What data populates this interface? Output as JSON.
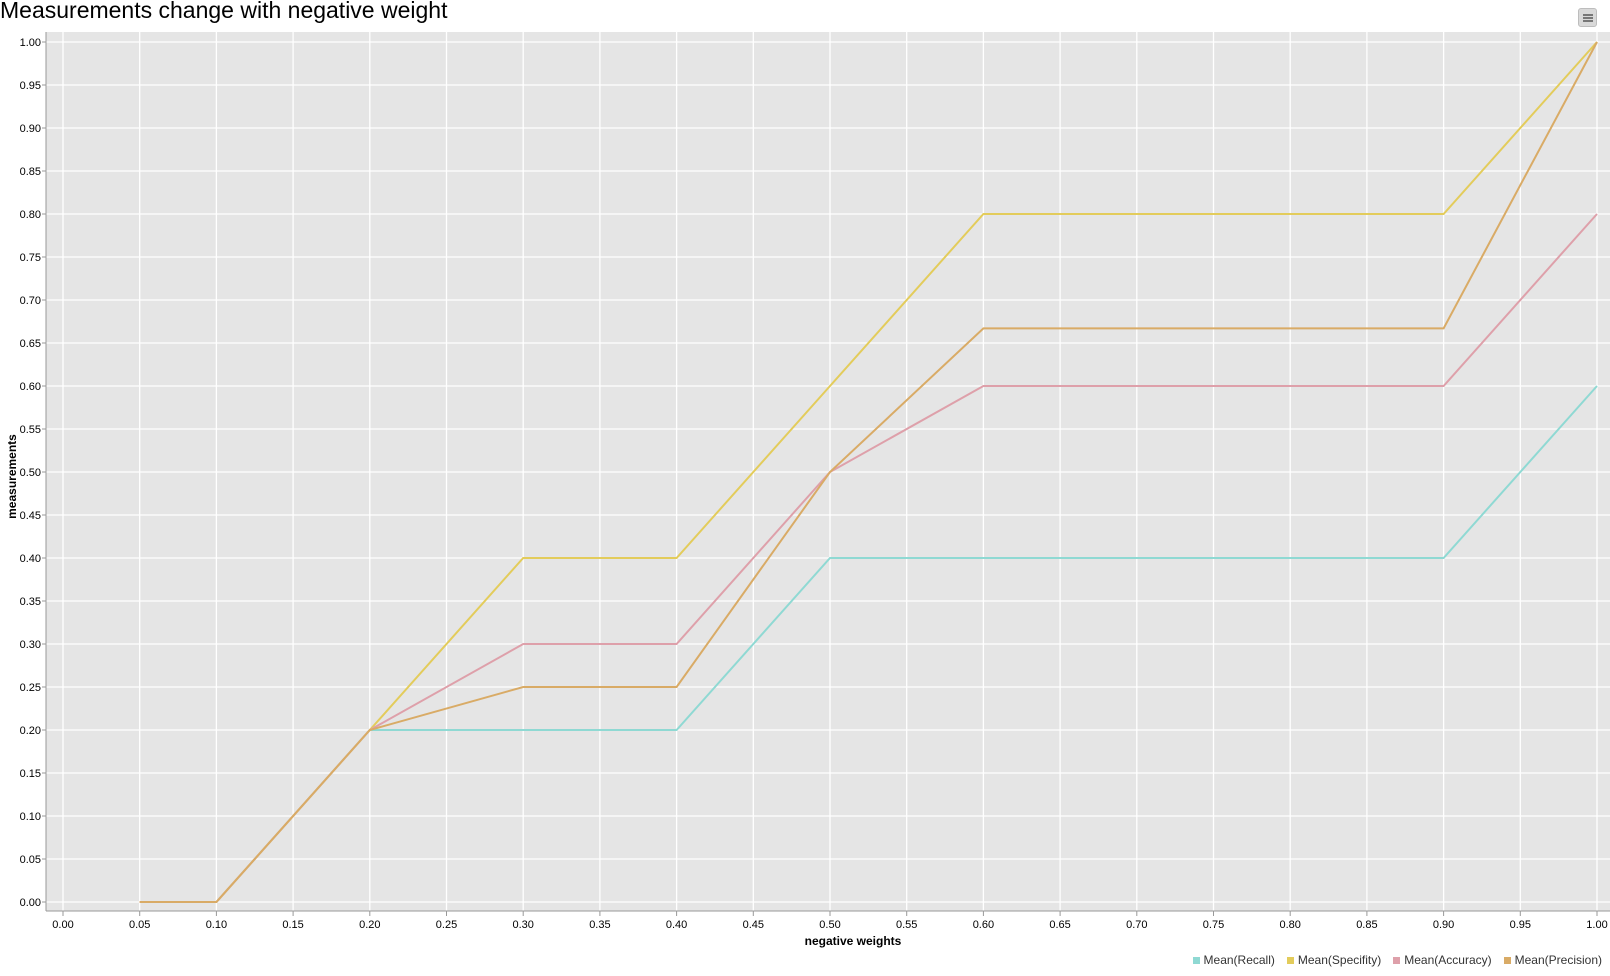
{
  "chart_data": {
    "type": "line",
    "title": "Measurements change with negative weight",
    "xlabel": "negative weights",
    "ylabel": "measurements",
    "xlim": [
      0,
      1
    ],
    "ylim": [
      0,
      1
    ],
    "xticks": [
      "0.00",
      "0.05",
      "0.10",
      "0.15",
      "0.20",
      "0.25",
      "0.30",
      "0.35",
      "0.40",
      "0.45",
      "0.50",
      "0.55",
      "0.60",
      "0.65",
      "0.70",
      "0.75",
      "0.80",
      "0.85",
      "0.90",
      "0.95",
      "1.00"
    ],
    "yticks": [
      "0.00",
      "0.05",
      "0.10",
      "0.15",
      "0.20",
      "0.25",
      "0.30",
      "0.35",
      "0.40",
      "0.45",
      "0.50",
      "0.55",
      "0.60",
      "0.65",
      "0.70",
      "0.75",
      "0.80",
      "0.85",
      "0.90",
      "0.95",
      "1.00"
    ],
    "grid": true,
    "legend_position": "bottom-right",
    "x": [
      0.05,
      0.1,
      0.2,
      0.3,
      0.4,
      0.5,
      0.6,
      0.9,
      1.0
    ],
    "series": [
      {
        "name": "Mean(Recall)",
        "color": "#8fd9d3",
        "values": [
          0,
          0,
          0.2,
          0.2,
          0.2,
          0.4,
          0.4,
          0.4,
          0.6
        ]
      },
      {
        "name": "Mean(Specifity)",
        "color": "#e3cc5b",
        "values": [
          0,
          0,
          0.2,
          0.4,
          0.4,
          0.6,
          0.8,
          0.8,
          1.0
        ]
      },
      {
        "name": "Mean(Accuracy)",
        "color": "#dea0aa",
        "values": [
          0,
          0,
          0.2,
          0.3,
          0.3,
          0.5,
          0.6,
          0.6,
          0.8
        ]
      },
      {
        "name": "Mean(Precision)",
        "color": "#d9ab66",
        "values": [
          0,
          0,
          0.2,
          0.25,
          0.25,
          0.5,
          0.667,
          0.667,
          1.0
        ]
      }
    ]
  },
  "ui": {
    "menu_icon": "hamburger-menu-icon"
  }
}
